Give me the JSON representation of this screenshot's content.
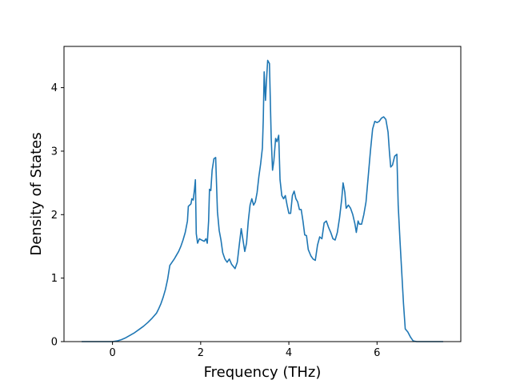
{
  "chart_data": {
    "type": "line",
    "title": "",
    "xlabel": "Frequency (THz)",
    "ylabel": "Density of States",
    "xlim": [
      -1.1,
      7.9
    ],
    "ylim": [
      0,
      4.65
    ],
    "xticks": [
      0,
      2,
      4,
      6
    ],
    "yticks": [
      0,
      1,
      2,
      3,
      4
    ],
    "grid": false,
    "legend": "none",
    "colors": {
      "line": "#1f77b4",
      "axes": "#000000",
      "background": "#ffffff"
    },
    "series": [
      {
        "points": [
          [
            -0.7,
            0
          ],
          [
            -0.4,
            0
          ],
          [
            -0.1,
            0
          ],
          [
            0.0,
            0.0
          ],
          [
            0.1,
            0.01
          ],
          [
            0.2,
            0.03
          ],
          [
            0.3,
            0.06
          ],
          [
            0.4,
            0.1
          ],
          [
            0.5,
            0.14
          ],
          [
            0.6,
            0.19
          ],
          [
            0.7,
            0.24
          ],
          [
            0.8,
            0.3
          ],
          [
            0.9,
            0.37
          ],
          [
            1.0,
            0.45
          ],
          [
            1.05,
            0.52
          ],
          [
            1.1,
            0.6
          ],
          [
            1.15,
            0.7
          ],
          [
            1.2,
            0.82
          ],
          [
            1.25,
            0.98
          ],
          [
            1.3,
            1.2
          ],
          [
            1.35,
            1.25
          ],
          [
            1.4,
            1.3
          ],
          [
            1.45,
            1.36
          ],
          [
            1.5,
            1.42
          ],
          [
            1.55,
            1.5
          ],
          [
            1.6,
            1.6
          ],
          [
            1.65,
            1.72
          ],
          [
            1.7,
            1.9
          ],
          [
            1.72,
            2.13
          ],
          [
            1.75,
            2.15
          ],
          [
            1.78,
            2.17
          ],
          [
            1.8,
            2.25
          ],
          [
            1.83,
            2.23
          ],
          [
            1.86,
            2.4
          ],
          [
            1.88,
            2.55
          ],
          [
            1.9,
            1.7
          ],
          [
            1.93,
            1.55
          ],
          [
            1.97,
            1.62
          ],
          [
            2.02,
            1.6
          ],
          [
            2.08,
            1.58
          ],
          [
            2.12,
            1.62
          ],
          [
            2.15,
            1.55
          ],
          [
            2.18,
            1.9
          ],
          [
            2.2,
            2.4
          ],
          [
            2.23,
            2.38
          ],
          [
            2.26,
            2.7
          ],
          [
            2.3,
            2.88
          ],
          [
            2.34,
            2.9
          ],
          [
            2.38,
            2.05
          ],
          [
            2.42,
            1.75
          ],
          [
            2.46,
            1.6
          ],
          [
            2.5,
            1.4
          ],
          [
            2.55,
            1.3
          ],
          [
            2.6,
            1.25
          ],
          [
            2.65,
            1.3
          ],
          [
            2.7,
            1.22
          ],
          [
            2.78,
            1.15
          ],
          [
            2.83,
            1.25
          ],
          [
            2.88,
            1.55
          ],
          [
            2.92,
            1.78
          ],
          [
            2.96,
            1.6
          ],
          [
            3.0,
            1.42
          ],
          [
            3.04,
            1.55
          ],
          [
            3.08,
            1.9
          ],
          [
            3.12,
            2.15
          ],
          [
            3.16,
            2.25
          ],
          [
            3.2,
            2.15
          ],
          [
            3.24,
            2.2
          ],
          [
            3.28,
            2.35
          ],
          [
            3.32,
            2.6
          ],
          [
            3.36,
            2.8
          ],
          [
            3.4,
            3.05
          ],
          [
            3.42,
            3.5
          ],
          [
            3.44,
            4.25
          ],
          [
            3.47,
            3.8
          ],
          [
            3.5,
            4.2
          ],
          [
            3.52,
            4.43
          ],
          [
            3.56,
            4.38
          ],
          [
            3.6,
            3.2
          ],
          [
            3.63,
            2.7
          ],
          [
            3.66,
            2.85
          ],
          [
            3.7,
            3.2
          ],
          [
            3.73,
            3.15
          ],
          [
            3.77,
            3.25
          ],
          [
            3.8,
            2.55
          ],
          [
            3.84,
            2.3
          ],
          [
            3.88,
            2.25
          ],
          [
            3.92,
            2.3
          ],
          [
            3.96,
            2.15
          ],
          [
            4.0,
            2.02
          ],
          [
            4.04,
            2.02
          ],
          [
            4.08,
            2.3
          ],
          [
            4.12,
            2.37
          ],
          [
            4.16,
            2.25
          ],
          [
            4.2,
            2.2
          ],
          [
            4.24,
            2.08
          ],
          [
            4.28,
            2.08
          ],
          [
            4.32,
            1.9
          ],
          [
            4.36,
            1.68
          ],
          [
            4.4,
            1.67
          ],
          [
            4.44,
            1.45
          ],
          [
            4.5,
            1.35
          ],
          [
            4.55,
            1.3
          ],
          [
            4.6,
            1.28
          ],
          [
            4.65,
            1.52
          ],
          [
            4.7,
            1.65
          ],
          [
            4.75,
            1.62
          ],
          [
            4.8,
            1.87
          ],
          [
            4.85,
            1.9
          ],
          [
            4.9,
            1.8
          ],
          [
            4.95,
            1.72
          ],
          [
            5.0,
            1.62
          ],
          [
            5.05,
            1.6
          ],
          [
            5.1,
            1.72
          ],
          [
            5.15,
            1.95
          ],
          [
            5.2,
            2.25
          ],
          [
            5.23,
            2.5
          ],
          [
            5.27,
            2.35
          ],
          [
            5.3,
            2.1
          ],
          [
            5.35,
            2.15
          ],
          [
            5.4,
            2.1
          ],
          [
            5.45,
            2.0
          ],
          [
            5.5,
            1.85
          ],
          [
            5.53,
            1.72
          ],
          [
            5.57,
            1.9
          ],
          [
            5.6,
            1.85
          ],
          [
            5.65,
            1.85
          ],
          [
            5.7,
            2.0
          ],
          [
            5.75,
            2.2
          ],
          [
            5.8,
            2.6
          ],
          [
            5.85,
            3.0
          ],
          [
            5.9,
            3.35
          ],
          [
            5.95,
            3.47
          ],
          [
            6.0,
            3.45
          ],
          [
            6.05,
            3.47
          ],
          [
            6.1,
            3.52
          ],
          [
            6.15,
            3.54
          ],
          [
            6.2,
            3.5
          ],
          [
            6.25,
            3.3
          ],
          [
            6.28,
            3.0
          ],
          [
            6.31,
            2.75
          ],
          [
            6.35,
            2.78
          ],
          [
            6.4,
            2.92
          ],
          [
            6.45,
            2.95
          ],
          [
            6.48,
            2.15
          ],
          [
            6.52,
            1.6
          ],
          [
            6.56,
            1.1
          ],
          [
            6.6,
            0.6
          ],
          [
            6.64,
            0.2
          ],
          [
            6.7,
            0.15
          ],
          [
            6.76,
            0.07
          ],
          [
            6.82,
            0.01
          ],
          [
            6.9,
            0
          ],
          [
            7.2,
            0
          ],
          [
            7.5,
            0
          ]
        ]
      }
    ]
  }
}
